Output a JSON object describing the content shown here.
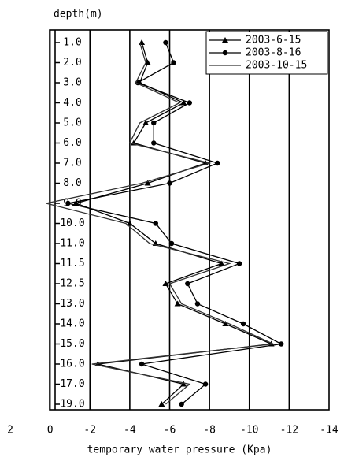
{
  "chart_data": {
    "type": "line",
    "title": "depth(m)",
    "x_label": "temporary water pressure (Kpa)",
    "categories": [
      "1.0",
      "2.0",
      "3.0",
      "4.0",
      "5.0",
      "6.0",
      "7.0",
      "8.0",
      "9.0",
      "10.0",
      "11.0",
      "11.5",
      "12.5",
      "13.0",
      "14.0",
      "15.0",
      "16.0",
      "17.0",
      "19.0"
    ],
    "xlim": [
      2,
      -14
    ],
    "xticks": [
      2,
      0,
      -2,
      -4,
      -6,
      -8,
      -10,
      -12,
      -14
    ],
    "grid": true,
    "legend": "upper right",
    "series": [
      {
        "name": "2003-6-15",
        "color": "#000000",
        "marker": "triangle",
        "values": [
          -4.6,
          -4.9,
          -4.5,
          -6.7,
          -4.8,
          -4.2,
          -7.8,
          -4.9,
          -1.3,
          -4.0,
          -5.3,
          -8.6,
          -5.8,
          -6.4,
          -8.8,
          -11.1,
          -2.4,
          -6.7,
          -5.6
        ]
      },
      {
        "name": "2003-8-16",
        "color": "#000000",
        "marker": "circle",
        "values": [
          -5.8,
          -6.2,
          -4.4,
          -7.0,
          -5.2,
          -5.2,
          -8.4,
          -6.0,
          -0.9,
          -5.3,
          -6.1,
          -9.5,
          -6.9,
          -7.4,
          -9.7,
          -11.6,
          -4.6,
          -7.8,
          -6.6
        ]
      },
      {
        "name": "2003-10-15",
        "color": "#333333",
        "marker": "none",
        "values": [
          -4.5,
          -4.8,
          -4.3,
          -6.5,
          -4.5,
          -4.0,
          -8.0,
          -4.6,
          0.2,
          -3.8,
          -5.0,
          -9.0,
          -6.0,
          -6.6,
          -9.0,
          -11.2,
          -2.1,
          -7.0,
          -5.8
        ]
      }
    ]
  }
}
